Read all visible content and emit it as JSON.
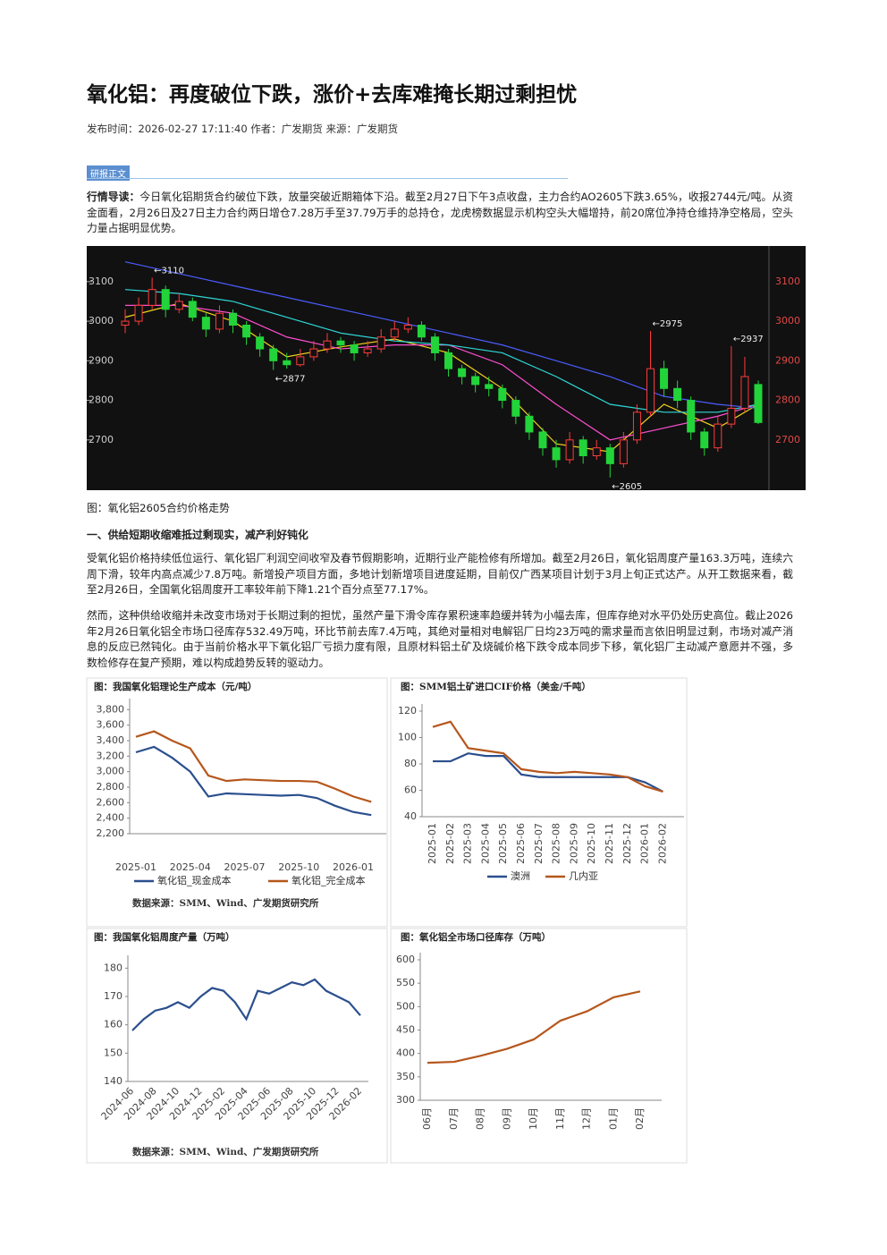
{
  "header": {
    "title": "氧化铝：再度破位下跌，涨价+去库难掩长期过剩担忧",
    "meta": "发布时间：2026-02-27 17:11:40 作者：广发期货 来源：广发期货"
  },
  "section_label": "研报正文",
  "intro": {
    "lead": "行情导读：",
    "text": "今日氧化铝期货合约破位下跌，放量突破近期箱体下沿。截至2月27日下午3点收盘，主力合约AO2605下跌3.65%，收报2744元/吨。从资金面看，2月26日及27日主力合约两日增仓7.28万手至37.79万手的总持仓，龙虎榜数据显示机构空头大幅增持，前20席位净持仓维持净空格局，空头力量占据明显优势。"
  },
  "figure_caption": "图：氧化铝2605合约价格走势",
  "heading": "一、供给短期收缩难抵过剩现实，减产利好钝化",
  "paragraphs": [
    "受氧化铝价格持续低位运行、氧化铝厂利润空间收窄及春节假期影响，近期行业产能检修有所增加。截至2月26日，氧化铝周度产量163.3万吨，连续六周下滑，较年内高点减少7.8万吨。新增投产项目方面，多地计划新增项目进度延期，目前仅广西某项目计划于3月上旬正式达产。从开工数据来看，截至2月26日，全国氧化铝周度开工率较年前下降1.21个百分点至77.17%。",
    "然而，这种供给收缩并未改变市场对于长期过剩的担忧，虽然产量下滑令库存累积速率趋缓并转为小幅去库，但库存绝对水平仍处历史高位。截止2026年2月26日氧化铝全市场口径库存532.49万吨，环比节前去库7.4万吨，其绝对量相对电解铝厂日均23万吨的需求量而言依旧明显过剩，市场对减产消息的反应已然钝化。由于当前价格水平下氧化铝厂亏损力度有限，且原材料铝土矿及烧碱价格下跌令成本同步下移，氧化铝厂主动减产意愿并不强，多数检修存在复产预期，难以构成趋势反转的驱动力。"
  ],
  "sources": [
    "数据来源：SMM、Wind、广发期货研究所",
    "数据来源：SMM、Wind、广发期货研究所"
  ],
  "charts": [
    {
      "type": "candlestick",
      "background": "#111111",
      "up_color": "#ff3b3b",
      "down_color": "#22d43a",
      "open": [
        2990,
        3000,
        3040,
        3080,
        3030,
        3050,
        3010,
        2980,
        3020,
        2990,
        2960,
        2930,
        2900,
        2890,
        2910,
        2930,
        2950,
        2940,
        2920,
        2930,
        2960,
        2980,
        2990,
        2960,
        2920,
        2880,
        2860,
        2840,
        2830,
        2800,
        2760,
        2720,
        2680,
        2650,
        2700,
        2660,
        2680,
        2640,
        2700,
        2770,
        2880,
        2830,
        2800,
        2720,
        2680,
        2740,
        2780,
        2840
      ],
      "close": [
        3000,
        3040,
        3080,
        3030,
        3050,
        3010,
        2980,
        3020,
        2990,
        2960,
        2930,
        2900,
        2890,
        2910,
        2930,
        2950,
        2940,
        2920,
        2930,
        2960,
        2980,
        2990,
        2960,
        2920,
        2880,
        2860,
        2840,
        2830,
        2800,
        2760,
        2720,
        2680,
        2650,
        2700,
        2660,
        2680,
        2640,
        2700,
        2770,
        2880,
        2830,
        2800,
        2720,
        2680,
        2740,
        2780,
        2860,
        2744
      ],
      "high": [
        3030,
        3060,
        3110,
        3090,
        3070,
        3060,
        3020,
        3040,
        3030,
        3000,
        2970,
        2940,
        2920,
        2930,
        2950,
        2970,
        2960,
        2950,
        2950,
        2980,
        3000,
        3010,
        3000,
        2970,
        2930,
        2890,
        2870,
        2860,
        2840,
        2810,
        2770,
        2730,
        2700,
        2720,
        2710,
        2700,
        2690,
        2720,
        2790,
        2975,
        2900,
        2850,
        2810,
        2730,
        2760,
        2937,
        2910,
        2850
      ],
      "low": [
        2970,
        2990,
        3030,
        3010,
        3020,
        3000,
        2960,
        2970,
        2970,
        2940,
        2910,
        2877,
        2880,
        2885,
        2900,
        2920,
        2920,
        2900,
        2910,
        2920,
        2950,
        2970,
        2950,
        2900,
        2860,
        2840,
        2820,
        2810,
        2780,
        2740,
        2700,
        2660,
        2630,
        2640,
        2640,
        2650,
        2605,
        2630,
        2690,
        2760,
        2810,
        2780,
        2700,
        2660,
        2670,
        2730,
        2770,
        2740
      ],
      "ma_x": [
        0,
        4,
        8,
        12,
        16,
        20,
        24,
        28,
        32,
        36,
        40,
        44,
        47
      ],
      "ma": [
        {
          "color": "#f2d21b",
          "values": [
            3010,
            3045,
            3000,
            2910,
            2935,
            2955,
            2920,
            2830,
            2690,
            2670,
            2790,
            2730,
            2790
          ]
        },
        {
          "color": "#ff4fd0",
          "values": [
            3040,
            3040,
            3020,
            2960,
            2930,
            2940,
            2940,
            2890,
            2790,
            2700,
            2730,
            2760,
            2790
          ]
        },
        {
          "color": "#2fd8d8",
          "values": [
            3080,
            3070,
            3050,
            3010,
            2970,
            2950,
            2940,
            2920,
            2860,
            2790,
            2770,
            2770,
            2790
          ]
        },
        {
          "color": "#4b5cff",
          "values": [
            3150,
            3120,
            3090,
            3060,
            3030,
            3000,
            2970,
            2940,
            2900,
            2860,
            2810,
            2790,
            2780
          ]
        }
      ],
      "ylim": [
        2573,
        3190
      ],
      "yticks": [
        2700,
        2800,
        2900,
        3000,
        3100
      ],
      "annotations": [
        {
          "value": 3110,
          "label": "←3110"
        },
        {
          "value": 2877,
          "label": "←2877"
        },
        {
          "value": 2975,
          "label": "←2975"
        },
        {
          "value": 2605,
          "label": "←2605"
        },
        {
          "value": 2937,
          "label": "←2937"
        }
      ]
    },
    {
      "type": "line",
      "title": "图：我国氧化铝理论生产成本（元/吨）",
      "categories": [
        "2025-01",
        null,
        null,
        "2025-04",
        null,
        null,
        "2025-07",
        null,
        null,
        "2025-10",
        null,
        null,
        "2026-01",
        null
      ],
      "series": [
        {
          "name": "氧化铝_现金成本",
          "color": "#2b4f8e",
          "values": [
            3250,
            3320,
            3180,
            3000,
            2680,
            2720,
            2710,
            2700,
            2690,
            2700,
            2660,
            2560,
            2480,
            2440
          ]
        },
        {
          "name": "氧化铝_完全成本",
          "color": "#b5571d",
          "values": [
            3450,
            3520,
            3400,
            3300,
            2950,
            2880,
            2900,
            2890,
            2880,
            2880,
            2870,
            2780,
            2680,
            2610
          ]
        }
      ],
      "ylim": [
        2200,
        3850
      ],
      "yticks": [
        {
          "value": 2200,
          "label": "2,200"
        },
        {
          "value": 2400,
          "label": "2,400"
        },
        {
          "value": 2600,
          "label": "2,600"
        },
        {
          "value": 2800,
          "label": "2,800"
        },
        {
          "value": 3000,
          "label": "3,000"
        },
        {
          "value": 3200,
          "label": "3,200"
        },
        {
          "value": 3400,
          "label": "3,400"
        },
        {
          "value": 3600,
          "label": "3,600"
        },
        {
          "value": 3800,
          "label": "3,800"
        }
      ]
    },
    {
      "type": "line",
      "title": "图：SMM铝土矿进口CIF价格（美金/千吨）",
      "categories": [
        "2025-01",
        "2025-02",
        "2025-03",
        "2025-04",
        "2025-05",
        "2025-06",
        "2025-07",
        "2025-08",
        "2025-09",
        "2025-10",
        "2025-11",
        "2025-12",
        "2026-01",
        "2026-02"
      ],
      "series": [
        {
          "name": "澳洲",
          "color": "#2b4f8e",
          "values": [
            82,
            82,
            88,
            86,
            86,
            72,
            70,
            70,
            70,
            70,
            70,
            70,
            66,
            59
          ]
        },
        {
          "name": "几内亚",
          "color": "#b5571d",
          "values": [
            108,
            112,
            92,
            90,
            88,
            76,
            74,
            73,
            74,
            73,
            72,
            70,
            63,
            59
          ]
        }
      ],
      "ylim": [
        40,
        120
      ],
      "yticks": [
        40,
        60,
        80,
        100,
        120
      ]
    },
    {
      "type": "line",
      "title": "图：我国氧化铝周度产量（万吨）",
      "categories": [
        "2024-06",
        null,
        "2024-08",
        null,
        "2024-10",
        null,
        "2024-12",
        null,
        "2025-02",
        null,
        "2025-04",
        null,
        "2025-06",
        null,
        "2025-08",
        null,
        "2025-10",
        null,
        "2025-12",
        null,
        "2026-02"
      ],
      "series": [
        {
          "color": "#2b4f8e",
          "values": [
            158,
            162,
            165,
            166,
            168,
            166,
            170,
            173,
            172,
            168,
            162,
            172,
            171,
            173,
            175,
            174,
            176,
            172,
            170,
            168,
            163.3
          ]
        }
      ],
      "ylim": [
        140,
        182
      ],
      "yticks": [
        140,
        150,
        160,
        170,
        180
      ]
    },
    {
      "type": "line",
      "title": "图：氧化铝全市场口径库存（万吨）",
      "categories": [
        "06月",
        "07月",
        "08月",
        "09月",
        "10月",
        "11月",
        "12月",
        "01月",
        "02月"
      ],
      "series": [
        {
          "color": "#b5571d",
          "values": [
            380,
            382,
            395,
            410,
            430,
            470,
            490,
            520,
            532.49
          ]
        }
      ],
      "ylim": [
        300,
        600
      ],
      "yticks": [
        300,
        350,
        400,
        450,
        500,
        550,
        600
      ]
    }
  ]
}
